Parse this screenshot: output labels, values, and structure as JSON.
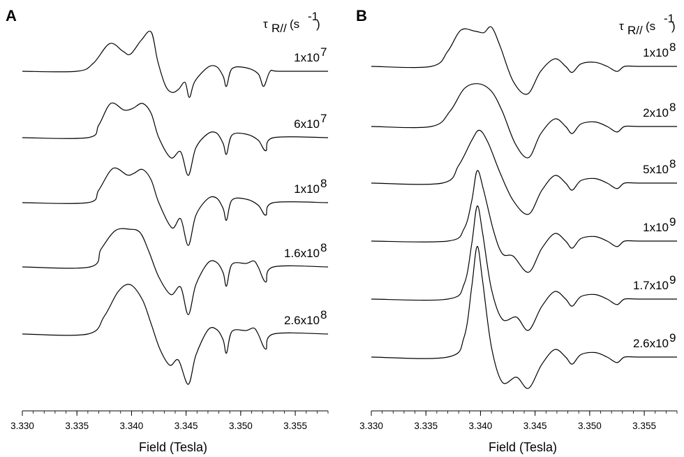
{
  "chart_data": [
    {
      "panel": "A",
      "type": "line",
      "header_symbol": "τ",
      "header_subscript": "R//",
      "header_units": "(s",
      "header_units_sup": "-1",
      "header_units_close": ")",
      "xlabel": "Field (Tesla)",
      "xlim": [
        3.33,
        3.358
      ],
      "xticks": [
        "3.330",
        "3.335",
        "3.340",
        "3.345",
        "3.350",
        "3.355"
      ],
      "xtick_values": [
        3.33,
        3.335,
        3.34,
        3.345,
        3.35,
        3.355
      ],
      "series": [
        {
          "name_base": "1x10",
          "name_exp": "7",
          "points": [
            [
              3.33,
              0.0
            ],
            [
              3.335,
              0.0
            ],
            [
              3.3365,
              0.16
            ],
            [
              3.338,
              0.55
            ],
            [
              3.3392,
              0.4
            ],
            [
              3.3399,
              0.34
            ],
            [
              3.3409,
              0.62
            ],
            [
              3.3418,
              0.78
            ],
            [
              3.3424,
              0.2
            ],
            [
              3.3431,
              -0.28
            ],
            [
              3.3437,
              -0.42
            ],
            [
              3.3443,
              -0.36
            ],
            [
              3.3449,
              -0.22
            ],
            [
              3.3453,
              -0.52
            ],
            [
              3.3458,
              -0.2
            ],
            [
              3.347,
              0.08
            ],
            [
              3.3478,
              0.09
            ],
            [
              3.3484,
              -0.1
            ],
            [
              3.3487,
              -0.3
            ],
            [
              3.3492,
              0.05
            ],
            [
              3.3505,
              0.07
            ],
            [
              3.3516,
              -0.05
            ],
            [
              3.3521,
              -0.3
            ],
            [
              3.3527,
              0.0
            ],
            [
              3.3535,
              0.0
            ],
            [
              3.358,
              0.0
            ]
          ]
        },
        {
          "name_base": "6x10",
          "name_exp": "7",
          "points": [
            [
              3.33,
              0.0
            ],
            [
              3.336,
              0.0
            ],
            [
              3.337,
              0.25
            ],
            [
              3.3381,
              0.68
            ],
            [
              3.3393,
              0.55
            ],
            [
              3.3401,
              0.58
            ],
            [
              3.341,
              0.68
            ],
            [
              3.3418,
              0.48
            ],
            [
              3.3425,
              0.0
            ],
            [
              3.3436,
              -0.4
            ],
            [
              3.3445,
              -0.28
            ],
            [
              3.3452,
              -0.75
            ],
            [
              3.3459,
              -0.2
            ],
            [
              3.347,
              0.08
            ],
            [
              3.3478,
              0.09
            ],
            [
              3.3484,
              -0.12
            ],
            [
              3.3487,
              -0.33
            ],
            [
              3.3492,
              0.05
            ],
            [
              3.3505,
              0.07
            ],
            [
              3.3516,
              -0.05
            ],
            [
              3.3523,
              -0.26
            ],
            [
              3.353,
              0.0
            ],
            [
              3.358,
              0.0
            ]
          ]
        },
        {
          "name_base": "1x10",
          "name_exp": "8",
          "points": [
            [
              3.33,
              0.0
            ],
            [
              3.336,
              0.0
            ],
            [
              3.337,
              0.25
            ],
            [
              3.3383,
              0.68
            ],
            [
              3.3396,
              0.55
            ],
            [
              3.3402,
              0.58
            ],
            [
              3.341,
              0.66
            ],
            [
              3.3418,
              0.45
            ],
            [
              3.3425,
              0.0
            ],
            [
              3.3437,
              -0.5
            ],
            [
              3.3445,
              -0.32
            ],
            [
              3.3452,
              -0.85
            ],
            [
              3.3459,
              -0.25
            ],
            [
              3.347,
              0.08
            ],
            [
              3.3478,
              0.09
            ],
            [
              3.3484,
              -0.12
            ],
            [
              3.3487,
              -0.35
            ],
            [
              3.3492,
              0.05
            ],
            [
              3.3505,
              0.07
            ],
            [
              3.3516,
              -0.05
            ],
            [
              3.3523,
              -0.25
            ],
            [
              3.353,
              0.0
            ],
            [
              3.358,
              0.0
            ]
          ]
        },
        {
          "name_base": "1.6x10",
          "name_exp": "8",
          "points": [
            [
              3.33,
              0.0
            ],
            [
              3.3362,
              0.0
            ],
            [
              3.3372,
              0.35
            ],
            [
              3.3385,
              0.72
            ],
            [
              3.3398,
              0.75
            ],
            [
              3.3408,
              0.68
            ],
            [
              3.3416,
              0.3
            ],
            [
              3.3425,
              -0.2
            ],
            [
              3.3436,
              -0.55
            ],
            [
              3.3445,
              -0.4
            ],
            [
              3.3452,
              -0.95
            ],
            [
              3.3459,
              -0.35
            ],
            [
              3.347,
              0.08
            ],
            [
              3.3478,
              0.09
            ],
            [
              3.3484,
              -0.12
            ],
            [
              3.3487,
              -0.38
            ],
            [
              3.3492,
              0.05
            ],
            [
              3.3505,
              0.07
            ],
            [
              3.3512,
              0.12
            ],
            [
              3.3516,
              0.0
            ],
            [
              3.3523,
              -0.3
            ],
            [
              3.353,
              0.0
            ],
            [
              3.358,
              0.0
            ]
          ]
        },
        {
          "name_base": "2.6x10",
          "name_exp": "8",
          "points": [
            [
              3.33,
              0.0
            ],
            [
              3.336,
              0.0
            ],
            [
              3.3375,
              0.35
            ],
            [
              3.3388,
              0.85
            ],
            [
              3.3399,
              0.98
            ],
            [
              3.341,
              0.68
            ],
            [
              3.3418,
              0.2
            ],
            [
              3.3426,
              -0.3
            ],
            [
              3.3435,
              -0.62
            ],
            [
              3.3443,
              -0.52
            ],
            [
              3.3452,
              -1.0
            ],
            [
              3.3459,
              -0.42
            ],
            [
              3.347,
              0.08
            ],
            [
              3.3478,
              0.09
            ],
            [
              3.3484,
              -0.12
            ],
            [
              3.3487,
              -0.38
            ],
            [
              3.3492,
              0.05
            ],
            [
              3.3505,
              0.07
            ],
            [
              3.3512,
              0.12
            ],
            [
              3.3516,
              0.0
            ],
            [
              3.3523,
              -0.3
            ],
            [
              3.353,
              0.0
            ],
            [
              3.358,
              0.0
            ]
          ]
        }
      ]
    },
    {
      "panel": "B",
      "type": "line",
      "header_symbol": "τ",
      "header_subscript": "R//",
      "header_units": "(s",
      "header_units_sup": "-1",
      "header_units_close": ")",
      "xlabel": "Field (Tesla)",
      "xlim": [
        3.33,
        3.358
      ],
      "xticks": [
        "3.330",
        "3.335",
        "3.340",
        "3.345",
        "3.350",
        "3.355"
      ],
      "xtick_values": [
        3.33,
        3.335,
        3.34,
        3.345,
        3.35,
        3.355
      ],
      "series": [
        {
          "name_base": "1x10",
          "name_exp": "8",
          "points": [
            [
              3.33,
              0.0
            ],
            [
              3.3355,
              0.0
            ],
            [
              3.337,
              0.3
            ],
            [
              3.3382,
              0.72
            ],
            [
              3.3395,
              0.7
            ],
            [
              3.3403,
              0.67
            ],
            [
              3.341,
              0.78
            ],
            [
              3.3418,
              0.4
            ],
            [
              3.343,
              -0.3
            ],
            [
              3.3443,
              -0.55
            ],
            [
              3.3455,
              -0.1
            ],
            [
              3.3468,
              0.15
            ],
            [
              3.3478,
              0.0
            ],
            [
              3.3484,
              -0.12
            ],
            [
              3.3492,
              0.05
            ],
            [
              3.3505,
              0.08
            ],
            [
              3.3516,
              0.0
            ],
            [
              3.3525,
              -0.1
            ],
            [
              3.3532,
              0.0
            ],
            [
              3.3545,
              0.0
            ],
            [
              3.358,
              0.0
            ]
          ]
        },
        {
          "name_base": "2x10",
          "name_exp": "8",
          "points": [
            [
              3.33,
              0.0
            ],
            [
              3.3355,
              0.0
            ],
            [
              3.3372,
              0.3
            ],
            [
              3.3385,
              0.75
            ],
            [
              3.3398,
              0.85
            ],
            [
              3.341,
              0.7
            ],
            [
              3.342,
              0.3
            ],
            [
              3.3432,
              -0.35
            ],
            [
              3.3444,
              -0.62
            ],
            [
              3.3455,
              -0.15
            ],
            [
              3.3468,
              0.15
            ],
            [
              3.3478,
              0.0
            ],
            [
              3.3484,
              -0.14
            ],
            [
              3.3492,
              0.05
            ],
            [
              3.3505,
              0.09
            ],
            [
              3.3516,
              0.0
            ],
            [
              3.3525,
              -0.11
            ],
            [
              3.3532,
              0.0
            ],
            [
              3.3545,
              0.0
            ],
            [
              3.358,
              0.0
            ]
          ]
        },
        {
          "name_base": "5x10",
          "name_exp": "8",
          "points": [
            [
              3.33,
              0.0
            ],
            [
              3.3365,
              0.0
            ],
            [
              3.338,
              0.35
            ],
            [
              3.3392,
              0.85
            ],
            [
              3.3399,
              1.05
            ],
            [
              3.3407,
              0.8
            ],
            [
              3.3418,
              0.2
            ],
            [
              3.343,
              -0.35
            ],
            [
              3.3444,
              -0.62
            ],
            [
              3.3456,
              -0.15
            ],
            [
              3.3468,
              0.15
            ],
            [
              3.3478,
              0.0
            ],
            [
              3.3484,
              -0.14
            ],
            [
              3.3492,
              0.05
            ],
            [
              3.3505,
              0.09
            ],
            [
              3.3516,
              0.0
            ],
            [
              3.3525,
              -0.11
            ],
            [
              3.3532,
              0.0
            ],
            [
              3.3545,
              0.0
            ],
            [
              3.358,
              0.0
            ]
          ]
        },
        {
          "name_base": "1x10",
          "name_exp": "9",
          "points": [
            [
              3.33,
              0.0
            ],
            [
              3.337,
              0.0
            ],
            [
              3.3385,
              0.25
            ],
            [
              3.3392,
              0.8
            ],
            [
              3.3397,
              1.4
            ],
            [
              3.3403,
              1.0
            ],
            [
              3.3412,
              0.2
            ],
            [
              3.342,
              -0.25
            ],
            [
              3.343,
              -0.3
            ],
            [
              3.3444,
              -0.62
            ],
            [
              3.3456,
              -0.15
            ],
            [
              3.3468,
              0.15
            ],
            [
              3.3478,
              0.0
            ],
            [
              3.3484,
              -0.14
            ],
            [
              3.3492,
              0.05
            ],
            [
              3.3505,
              0.09
            ],
            [
              3.3516,
              0.0
            ],
            [
              3.3525,
              -0.11
            ],
            [
              3.3532,
              0.0
            ],
            [
              3.3545,
              0.0
            ],
            [
              3.358,
              0.0
            ]
          ]
        },
        {
          "name_base": "1.7x10",
          "name_exp": "9",
          "points": [
            [
              3.33,
              0.0
            ],
            [
              3.337,
              0.0
            ],
            [
              3.3385,
              0.3
            ],
            [
              3.3392,
              1.1
            ],
            [
              3.3397,
              1.85
            ],
            [
              3.3402,
              1.3
            ],
            [
              3.341,
              0.2
            ],
            [
              3.342,
              -0.4
            ],
            [
              3.3433,
              -0.36
            ],
            [
              3.3444,
              -0.62
            ],
            [
              3.3456,
              -0.15
            ],
            [
              3.3468,
              0.15
            ],
            [
              3.3478,
              0.0
            ],
            [
              3.3484,
              -0.14
            ],
            [
              3.3492,
              0.05
            ],
            [
              3.3505,
              0.09
            ],
            [
              3.3516,
              0.0
            ],
            [
              3.3525,
              -0.11
            ],
            [
              3.3532,
              0.0
            ],
            [
              3.3545,
              0.0
            ],
            [
              3.358,
              0.0
            ]
          ]
        },
        {
          "name_base": "2.6x10",
          "name_exp": "9",
          "points": [
            [
              3.33,
              0.0
            ],
            [
              3.337,
              0.0
            ],
            [
              3.3385,
              0.4
            ],
            [
              3.3392,
              1.4
            ],
            [
              3.3397,
              2.2
            ],
            [
              3.3402,
              1.5
            ],
            [
              3.341,
              0.2
            ],
            [
              3.342,
              -0.5
            ],
            [
              3.3433,
              -0.4
            ],
            [
              3.3444,
              -0.62
            ],
            [
              3.3456,
              -0.15
            ],
            [
              3.3468,
              0.15
            ],
            [
              3.3478,
              0.0
            ],
            [
              3.3484,
              -0.14
            ],
            [
              3.3492,
              0.05
            ],
            [
              3.3505,
              0.09
            ],
            [
              3.3516,
              0.0
            ],
            [
              3.3525,
              -0.11
            ],
            [
              3.3532,
              0.0
            ],
            [
              3.3545,
              0.0
            ],
            [
              3.358,
              0.0
            ]
          ]
        }
      ]
    }
  ]
}
